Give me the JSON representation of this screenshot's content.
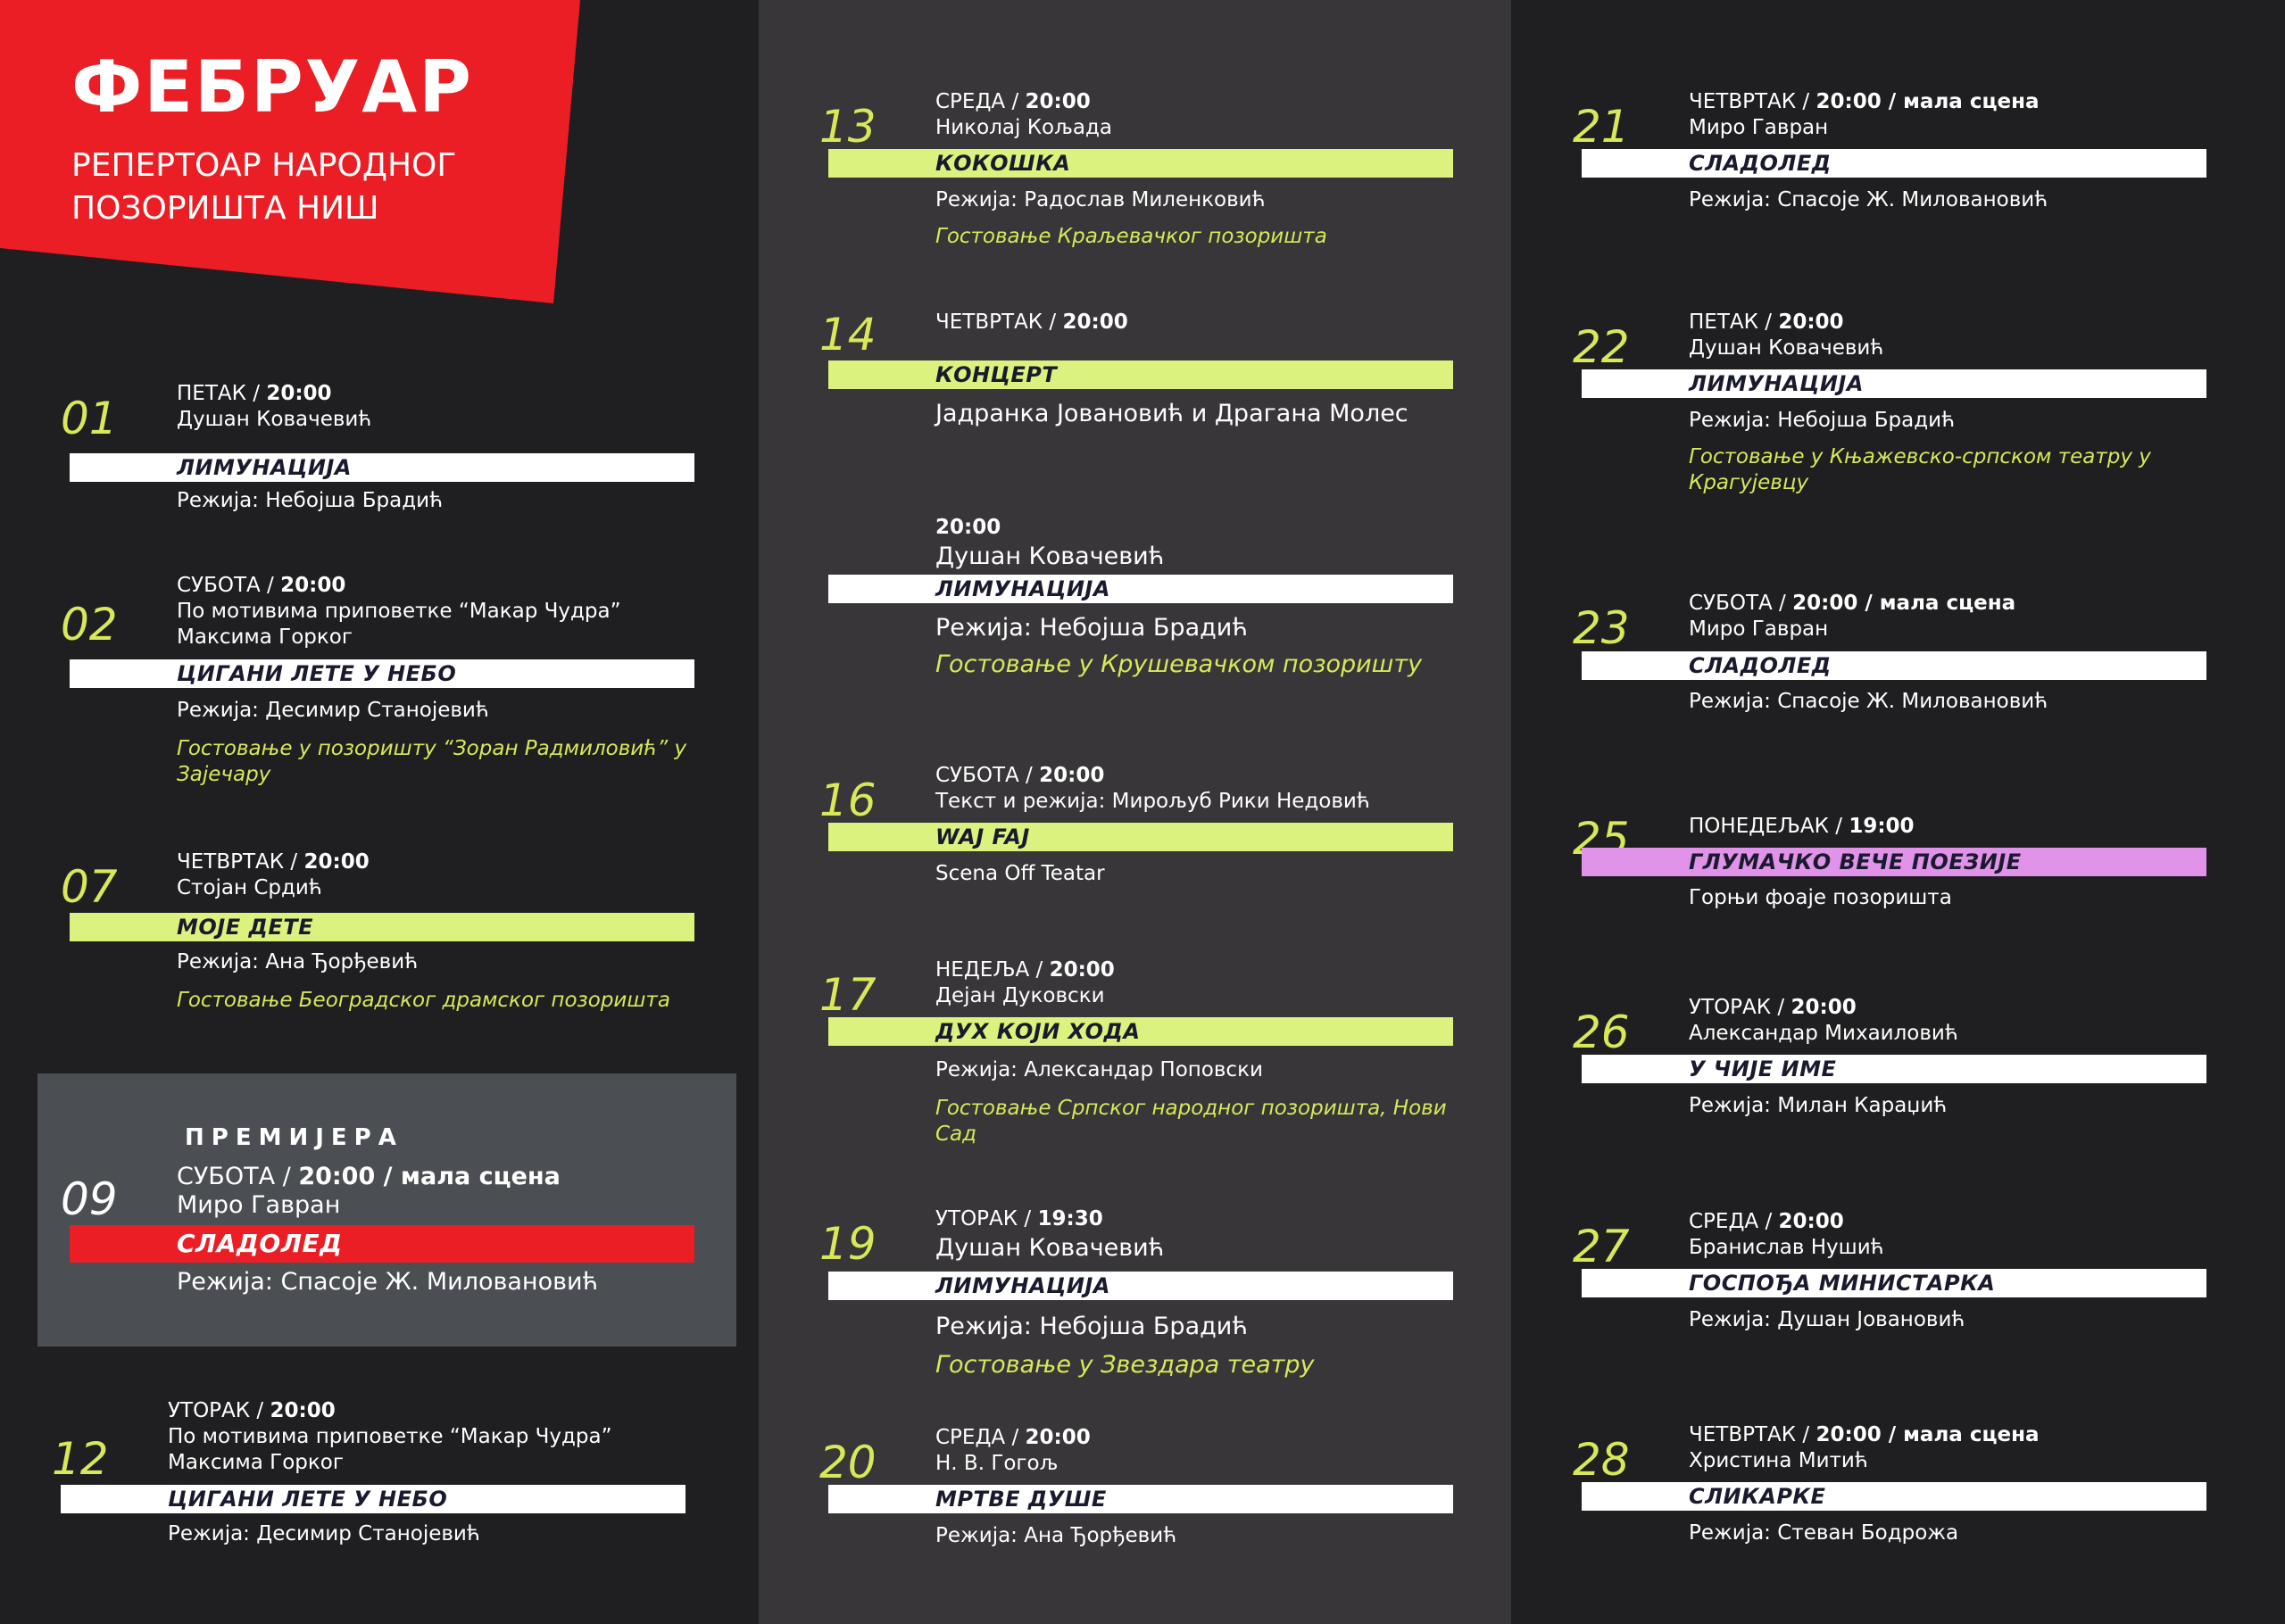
{
  "header": {
    "title": "ФЕБРУАР",
    "subtitle_line1": "РЕПЕРТОАР НАРОДНОГ",
    "subtitle_line2": "ПОЗОРИШТА НИШ"
  },
  "premiere_label": "ПРЕМИЈЕРА",
  "colors": {
    "accent_red": "#ea1e24",
    "accent_lime": "#dcf27e",
    "accent_pink": "#e093e8",
    "number_yellow": "#d8e85a"
  },
  "entries": [
    {
      "num": "01",
      "day": "ПЕТАК",
      "time": "20:00",
      "stage": "",
      "author": "Душан Ковачевић",
      "author2": "",
      "title": "ЛИМУНАЦИЈА",
      "director": "Режија: Небојша Брадић",
      "guest": ""
    },
    {
      "num": "02",
      "day": "СУБОТА",
      "time": "20:00",
      "stage": "",
      "author": "По мотивима приповетке “Макар Чудра”",
      "author2": "Максима Горког",
      "title": "ЦИГАНИ ЛЕТЕ У НЕБО",
      "director": "Режија: Десимир Станојевић",
      "guest": "Гостовање у позоришту “Зоран Радмиловић” у Зајечару"
    },
    {
      "num": "07",
      "day": "ЧЕТВРТАК",
      "time": "20:00",
      "stage": "",
      "author": "Стојан Срдић",
      "author2": "",
      "title": "МОЈЕ ДЕТЕ",
      "director": "Режија: Ана Ђорђевић",
      "guest": "Гостовање Београдског драмског позоришта"
    },
    {
      "num": "09",
      "day": "СУБОТА",
      "time": "20:00",
      "stage": "мала сцена",
      "author": "Миро Гавран",
      "author2": "",
      "title": "СЛАДОЛЕД",
      "director": "Режија: Спасоје Ж. Миловановић",
      "guest": ""
    },
    {
      "num": "12",
      "day": "УТОРАК",
      "time": "20:00",
      "stage": "",
      "author": "По мотивима приповетке “Макар Чудра”",
      "author2": "Максима Горког",
      "title": "ЦИГАНИ ЛЕТЕ У НЕБО",
      "director": "Режија: Десимир Станојевић",
      "guest": ""
    },
    {
      "num": "13",
      "day": "СРЕДА",
      "time": "20:00",
      "stage": "",
      "author": "Николај Кољада",
      "author2": "",
      "title": "КОКОШКА",
      "director": "Режија: Радослав Миленковић",
      "guest": "Гостовање Краљевачког позоришта"
    },
    {
      "num": "14",
      "day": "ЧЕТВРТАК",
      "time": "20:00",
      "stage": "",
      "author": "",
      "author2": "",
      "title": "КОНЦЕРТ",
      "director": "Јадранка Јовановић и Драгана Молес",
      "guest": ""
    },
    {
      "num": "",
      "day": "",
      "time": "20:00",
      "stage": "",
      "author": "Душан Ковачевић",
      "author2": "",
      "title": "ЛИМУНАЦИЈА",
      "director": "Режија: Небојша Брадић",
      "guest": "Гостовање у Крушевачком позоришту"
    },
    {
      "num": "16",
      "day": "СУБОТА",
      "time": "20:00",
      "stage": "",
      "author": "Текст и режија: Мирољуб Рики Недовић",
      "author2": "",
      "title": "WAJ FAJ",
      "director": "Scena Off Teatar",
      "guest": ""
    },
    {
      "num": "17",
      "day": "НЕДЕЉА",
      "time": "20:00",
      "stage": "",
      "author": "Дејан Дуковски",
      "author2": "",
      "title": "ДУХ КОЈИ ХОДА",
      "director": "Режија: Александар Поповски",
      "guest": "Гостовање Српског народног позоришта, Нови Сад"
    },
    {
      "num": "19",
      "day": "УТОРАК",
      "time": "19:30",
      "stage": "",
      "author": "Душан Ковачевић",
      "author2": "",
      "title": "ЛИМУНАЦИЈА",
      "director": "Режија: Небојша Брадић",
      "guest": "Гостовање у Звездара театру"
    },
    {
      "num": "20",
      "day": "СРЕДА",
      "time": "20:00",
      "stage": "",
      "author": "Н. В. Гогољ",
      "author2": "",
      "title": "МРТВЕ ДУШЕ",
      "director": "Режија: Ана Ђорђевић",
      "guest": ""
    },
    {
      "num": "21",
      "day": "ЧЕТВРТАК",
      "time": "20:00",
      "stage": "мала сцена",
      "author": "Миро Гавран",
      "author2": "",
      "title": "СЛАДОЛЕД",
      "director": "Режија: Спасоје Ж. Миловановић",
      "guest": ""
    },
    {
      "num": "22",
      "day": "ПЕТАК",
      "time": "20:00",
      "stage": "",
      "author": "Душан Ковачевић",
      "author2": "",
      "title": "ЛИМУНАЦИЈА",
      "director": "Режија: Небојша Брадић",
      "guest": "Гостовање у Књажевско-српском театру у Крагујевцу"
    },
    {
      "num": "23",
      "day": "СУБОТА",
      "time": "20:00",
      "stage": "мала сцена",
      "author": "Миро Гавран",
      "author2": "",
      "title": "СЛАДОЛЕД",
      "director": "Режија: Спасоје Ж. Миловановић",
      "guest": ""
    },
    {
      "num": "25",
      "day": "ПОНЕДЕЉАК",
      "time": "19:00",
      "stage": "",
      "author": "",
      "author2": "",
      "title": "ГЛУМАЧКО ВЕЧЕ ПОЕЗИЈЕ",
      "director": "Горњи фоаје позоришта",
      "guest": ""
    },
    {
      "num": "26",
      "day": "УТОРАК",
      "time": "20:00",
      "stage": "",
      "author": "Александар Михаиловић",
      "author2": "",
      "title": "У ЧИЈЕ ИМЕ",
      "director": "Режија: Милан Караџић",
      "guest": ""
    },
    {
      "num": "27",
      "day": "СРЕДА",
      "time": "20:00",
      "stage": "",
      "author": "Бранислав Нушић",
      "author2": "",
      "title": "ГОСПОЂА МИНИСТАРКА",
      "director": "Режија: Душан Јовановић",
      "guest": ""
    },
    {
      "num": "28",
      "day": "ЧЕТВРТАК",
      "time": "20:00",
      "stage": "мала сцена",
      "author": "Христина Митић",
      "author2": "",
      "title": "СЛИКАРКЕ",
      "director": "Режија: Стеван Бодрожа",
      "guest": ""
    }
  ]
}
